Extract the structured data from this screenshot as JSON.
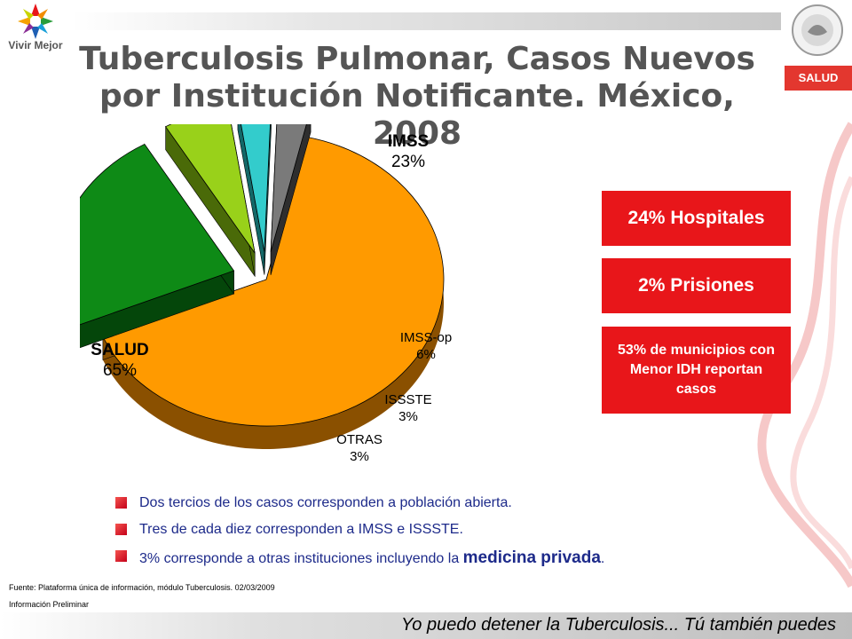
{
  "header": {
    "title_line1": "Tuberculosis Pulmonar, Casos Nuevos",
    "title_line2": "por Institución Notificante. México, 2008",
    "logo_left_text": "Vivir Mejor",
    "logo_right_badge": "SALUD"
  },
  "chart_data": {
    "type": "pie",
    "title": "Tuberculosis Pulmonar, Casos Nuevos por Institución Notificante. México, 2008",
    "three_d": true,
    "exploded": true,
    "slices": [
      {
        "name": "SALUD",
        "value": 65,
        "label": "65%",
        "color": "#ff9a00",
        "side": "#8a5000"
      },
      {
        "name": "IMSS",
        "value": 23,
        "label": "23%",
        "color": "#0e8a16",
        "side": "#04460a"
      },
      {
        "name": "IMSS-op",
        "value": 6,
        "label": "6%",
        "color": "#99d11a",
        "side": "#4a6a08"
      },
      {
        "name": "ISSSTE",
        "value": 3,
        "label": "3%",
        "color": "#33cccc",
        "side": "#136868"
      },
      {
        "name": "OTRAS",
        "value": 3,
        "label": "3%",
        "color": "#7a7a7a",
        "side": "#2e2e2e"
      }
    ]
  },
  "callouts": {
    "hospitales": "24% Hospitales",
    "prisiones": "2% Prisiones",
    "municipios": "53% de  municipios con Menor IDH reportan casos"
  },
  "bullets": {
    "b1": "Dos tercios de los casos corresponden a población abierta.",
    "b2": "Tres de cada diez corresponden a IMSS e ISSSTE.",
    "b3_pre": "3% corresponde a otras instituciones incluyendo la ",
    "b3_em": "medicina privada",
    "b3_post": "."
  },
  "source": "Fuente: Plataforma única de información, módulo Tuberculosis. 02/03/2009",
  "preliminary": "Información Preliminar",
  "footer": "Yo puedo detener la Tuberculosis... Tú también puedes",
  "colors": {
    "accent_red": "#e8161a",
    "bullet_text": "#1d2a8a",
    "title_gray": "#555555"
  }
}
